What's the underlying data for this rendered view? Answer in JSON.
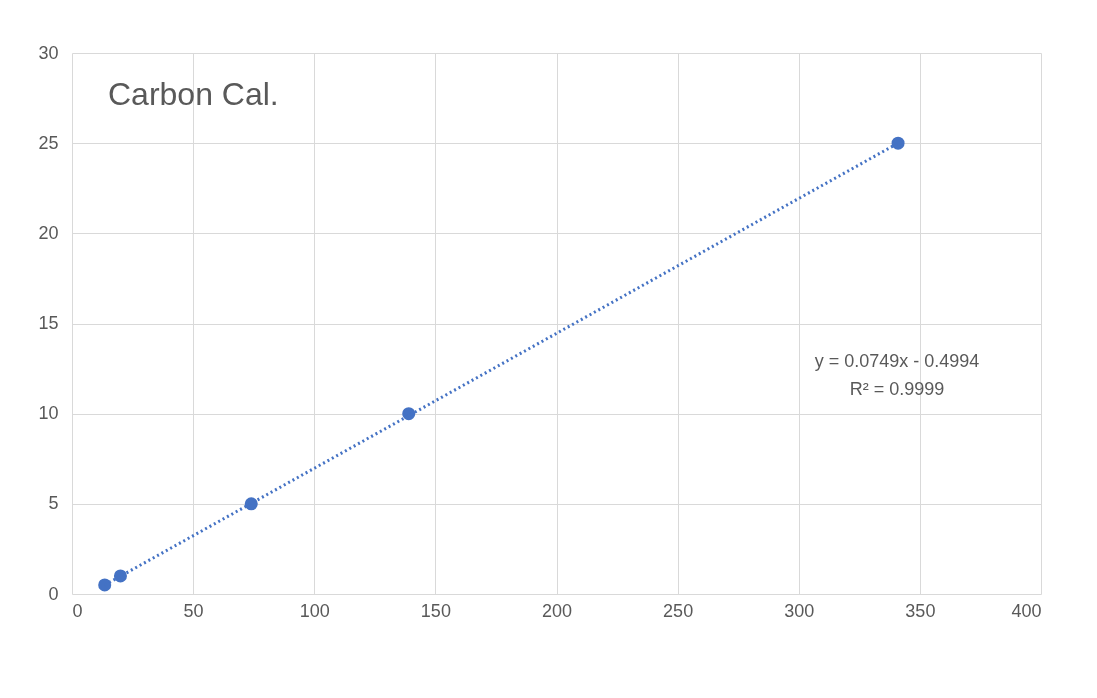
{
  "chart_data": {
    "type": "scatter",
    "title": "Carbon Cal.",
    "x": [
      13.5,
      20,
      74,
      139,
      341
    ],
    "series": [
      {
        "color": "#4472c4",
        "values": [
          0.5,
          1,
          5,
          10,
          25
        ],
        "marker": "circle"
      },
      {
        "type": "line",
        "color": "#4472c4",
        "x": [
          13.5,
          341
        ],
        "values": [
          0.5,
          25.0
        ],
        "line_style": "dotted"
      }
    ],
    "annotations": [
      "y = 0.0749x - 0.4994",
      "R² = 0.9999"
    ],
    "xlim": [
      0,
      400
    ],
    "xticks": [
      0,
      50,
      100,
      150,
      200,
      250,
      300,
      350,
      400
    ],
    "ylim": [
      0,
      30
    ],
    "yticks": [
      0,
      5,
      10,
      15,
      20,
      25,
      30
    ],
    "grid": true
  }
}
